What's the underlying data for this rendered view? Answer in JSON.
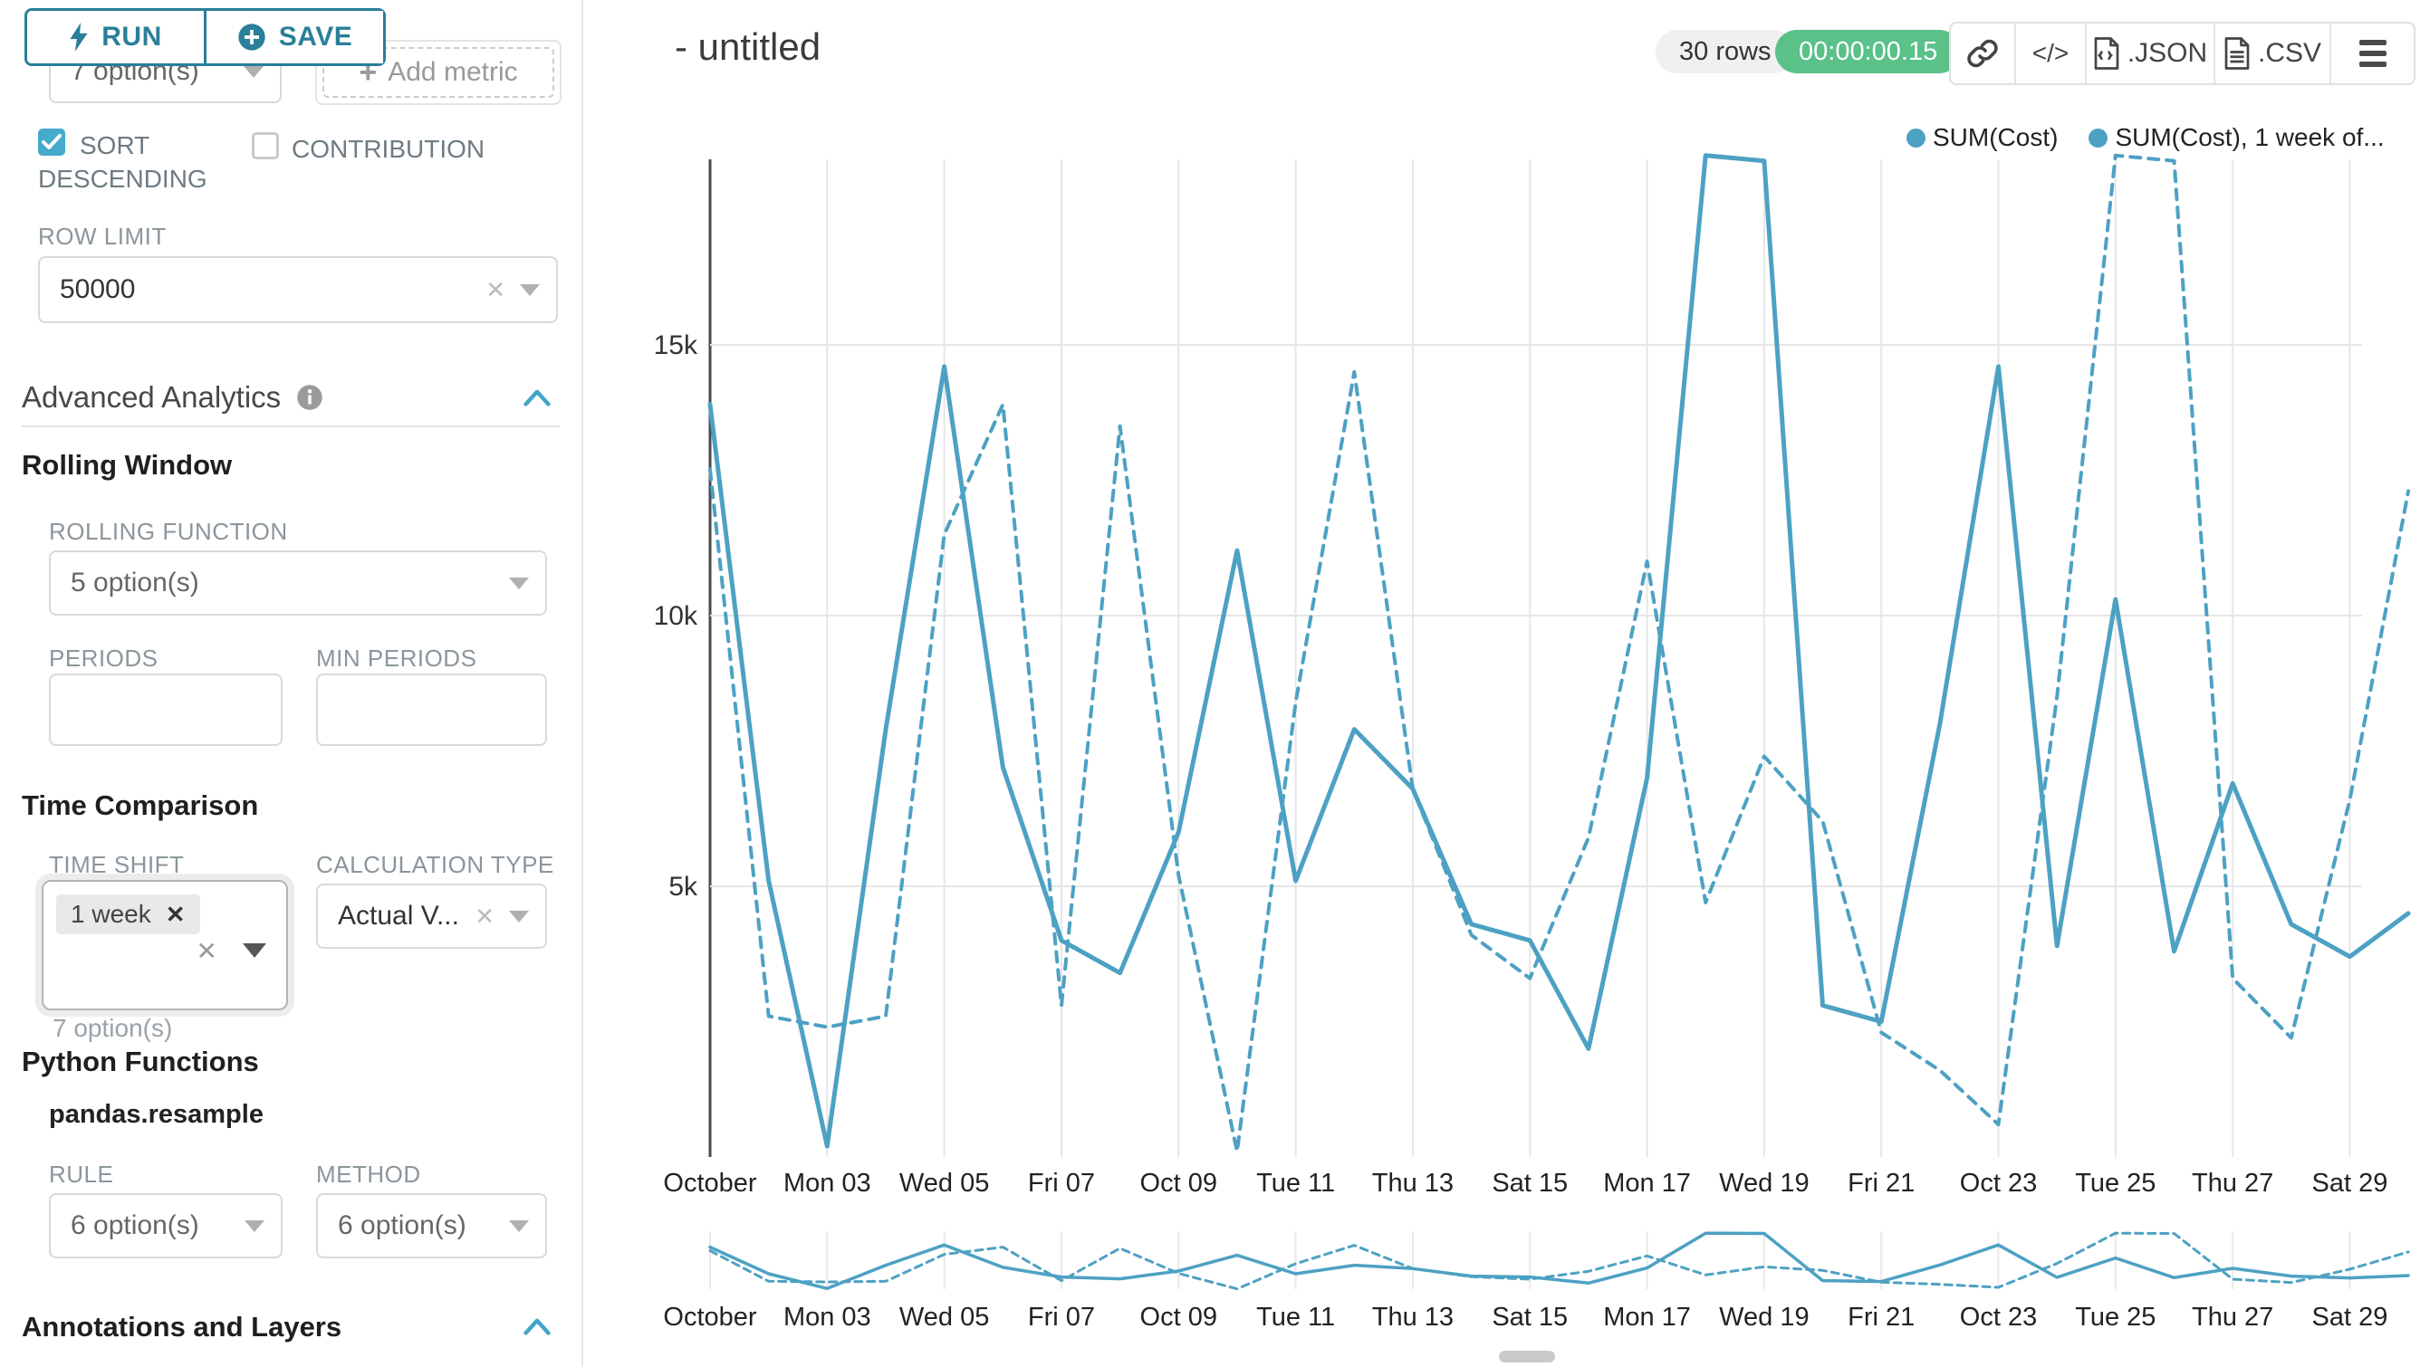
{
  "sidebar": {
    "run_button": "RUN",
    "save_button": "SAVE",
    "metric_select_value": "7 option(s)",
    "add_metric_label": "Add metric",
    "sort_descending_label": "SORT DESCENDING",
    "contribution_label": "CONTRIBUTION",
    "row_limit_label": "ROW LIMIT",
    "row_limit_value": "50000",
    "advanced_analytics_title": "Advanced Analytics",
    "rolling_window_title": "Rolling Window",
    "rolling_function_label": "ROLLING FUNCTION",
    "rolling_function_value": "5 option(s)",
    "periods_label": "PERIODS",
    "min_periods_label": "MIN PERIODS",
    "time_comparison_title": "Time Comparison",
    "time_shift_label": "TIME SHIFT",
    "time_shift_tag": "1 week",
    "time_shift_helper": "7 option(s)",
    "calculation_type_label": "CALCULATION TYPE",
    "calculation_type_value": "Actual V...",
    "python_functions_title": "Python Functions",
    "python_functions_subtitle": "pandas.resample",
    "rule_label": "RULE",
    "rule_value": "6 option(s)",
    "method_label": "METHOD",
    "method_value": "6 option(s)",
    "annotations_title": "Annotations and Layers"
  },
  "header": {
    "title": "- untitled",
    "rows_badge": "30 rows",
    "timer_badge": "00:00:00.15",
    "export_json_label": ".JSON",
    "export_csv_label": ".CSV"
  },
  "icons": {
    "clear": "✕",
    "plus": "+",
    "code": "</>"
  },
  "colors": {
    "line": "#4da1c3",
    "teal_button": "#2a7f99",
    "checkbox_checked": "#45aacb",
    "timer_green": "#5ac189",
    "chevron": "#41a5c8",
    "grid": "#e6e6e6",
    "axis": "#4a4a4a"
  },
  "chart_data": {
    "type": "line",
    "title": "- untitled",
    "x_labels": [
      "October",
      "Mon 03",
      "Wed 05",
      "Fri 07",
      "Oct 09",
      "Tue 11",
      "Thu 13",
      "Sat 15",
      "Mon 17",
      "Wed 19",
      "Fri 21",
      "Oct 23",
      "Tue 25",
      "Thu 27",
      "Sat 29"
    ],
    "x_label_days": [
      1,
      3,
      5,
      7,
      9,
      11,
      13,
      15,
      17,
      19,
      21,
      23,
      25,
      27,
      29
    ],
    "days": 30,
    "ylim": [
      0,
      18560
    ],
    "yticks": [
      {
        "label": "5k",
        "value": 5000
      },
      {
        "label": "10k",
        "value": 10000
      },
      {
        "label": "15k",
        "value": 15000
      }
    ],
    "grid": true,
    "legend_position": "top-right",
    "legend": [
      {
        "label": "SUM(Cost)",
        "style": "solid"
      },
      {
        "label": "SUM(Cost), 1 week of...",
        "style": "dashed"
      }
    ],
    "series": [
      {
        "name": "SUM(Cost)",
        "style": "solid",
        "values": [
          13900,
          5100,
          200,
          7900,
          14600,
          7200,
          4000,
          3400,
          6000,
          11200,
          5100,
          7900,
          6800,
          4300,
          4000,
          2000,
          7000,
          18500,
          18400,
          2800,
          2500,
          8000,
          14600,
          3900,
          10300,
          3800,
          6900,
          4300,
          3700,
          4500
        ]
      },
      {
        "name": "SUM(Cost), 1 week offset",
        "style": "dashed",
        "values": [
          12700,
          2600,
          2400,
          2600,
          11500,
          13900,
          2800,
          13500,
          5200,
          100,
          8400,
          14500,
          6800,
          4100,
          3300,
          5900,
          11000,
          4700,
          7400,
          6200,
          2300,
          1600,
          600,
          8500,
          18500,
          18400,
          3300,
          2200,
          6600,
          12300
        ]
      }
    ]
  }
}
